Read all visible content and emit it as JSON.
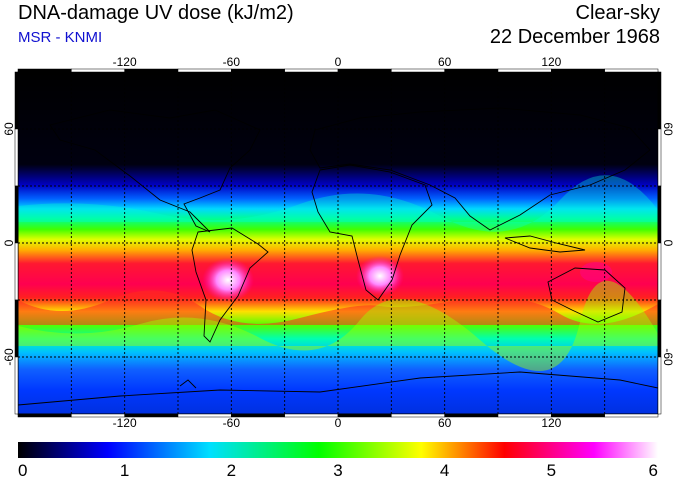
{
  "header": {
    "title": "DNA-damage UV dose (kJ/m2)",
    "subtitle": "MSR - KNMI",
    "condition": "Clear-sky",
    "date": "22 December 1968"
  },
  "map": {
    "projection": "equirectangular",
    "lon_range": [
      -180,
      180
    ],
    "lat_range": [
      -90,
      90
    ],
    "lon_ticks": [
      -120,
      -60,
      0,
      60,
      120
    ],
    "lat_ticks": [
      60,
      0,
      -60
    ],
    "gridlines": "dashed",
    "lon_tick_labels": [
      "-120",
      "-60",
      "0",
      "60",
      "120"
    ],
    "lat_tick_labels": [
      "60",
      "0",
      "-60"
    ]
  },
  "colorbar": {
    "min": 0,
    "max": 6,
    "unit": "kJ/m2",
    "tick_labels": [
      "0",
      "1",
      "2",
      "3",
      "4",
      "5",
      "6"
    ],
    "colors": [
      "#000000",
      "#0000ff",
      "#00e0ff",
      "#00ff00",
      "#ffff00",
      "#ff0000",
      "#ff00ff",
      "#ffffff"
    ]
  }
}
